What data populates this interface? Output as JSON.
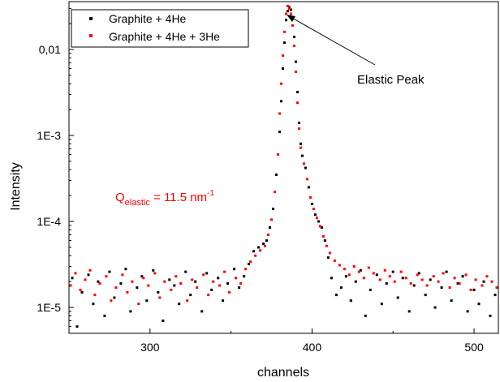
{
  "chart_data": {
    "type": "scatter",
    "title": "",
    "xlabel": "channels",
    "ylabel": "Intensity",
    "xlim": [
      250,
      515
    ],
    "ylim": [
      5e-06,
      0.036
    ],
    "y_scale": "log",
    "x_ticks": [
      {
        "value": 300,
        "label": "300"
      },
      {
        "value": 400,
        "label": "400"
      },
      {
        "value": 500,
        "label": "500"
      }
    ],
    "y_ticks": [
      {
        "value": 1e-05,
        "label": "1E-5"
      },
      {
        "value": 0.0001,
        "label": "1E-4"
      },
      {
        "value": 0.001,
        "label": "1E-3"
      },
      {
        "value": 0.01,
        "label": "0,01"
      }
    ],
    "grid": false,
    "legend_position": "top-left",
    "series": [
      {
        "name": "Graphite + 4He",
        "color": "#000000",
        "points": [
          [
            252,
            2.2e-05
          ],
          [
            255,
            6e-06
          ],
          [
            258,
            1.5e-05
          ],
          [
            262,
            2.4e-05
          ],
          [
            265,
            1.1e-05
          ],
          [
            268,
            2e-05
          ],
          [
            272,
            8e-06
          ],
          [
            275,
            2.6e-05
          ],
          [
            278,
            1.3e-05
          ],
          [
            282,
            1.9e-05
          ],
          [
            285,
            2.8e-05
          ],
          [
            288,
            9e-06
          ],
          [
            292,
            1.7e-05
          ],
          [
            295,
            2.3e-05
          ],
          [
            298,
            1.2e-05
          ],
          [
            302,
            2.7e-05
          ],
          [
            305,
            1.5e-05
          ],
          [
            308,
            7e-06
          ],
          [
            312,
            2.1e-05
          ],
          [
            315,
            1.8e-05
          ],
          [
            318,
            1.1e-05
          ],
          [
            322,
            2.6e-05
          ],
          [
            325,
            1.4e-05
          ],
          [
            328,
            2e-05
          ],
          [
            332,
            9e-06
          ],
          [
            335,
            2.5e-05
          ],
          [
            338,
            1.6e-05
          ],
          [
            342,
            2.2e-05
          ],
          [
            345,
            1.2e-05
          ],
          [
            348,
            1.9e-05
          ],
          [
            352,
            2.8e-05
          ],
          [
            355,
            1.7e-05
          ],
          [
            358,
            2.3e-05
          ],
          [
            361,
            3.2e-05
          ],
          [
            364,
            4.5e-05
          ],
          [
            367,
            5e-05
          ],
          [
            370,
            5.5e-05
          ],
          [
            372,
            6e-05
          ],
          [
            374,
            8.5e-05
          ],
          [
            376,
            0.00014
          ],
          [
            378,
            0.00035
          ],
          [
            380,
            0.0011
          ],
          [
            381,
            0.0025
          ],
          [
            382,
            0.006
          ],
          [
            383,
            0.012
          ],
          [
            384,
            0.022
          ],
          [
            385,
            0.028
          ],
          [
            386,
            0.031
          ],
          [
            387,
            0.029
          ],
          [
            388,
            0.023
          ],
          [
            389,
            0.014
          ],
          [
            390,
            0.0072
          ],
          [
            391,
            0.0032
          ],
          [
            392,
            0.0014
          ],
          [
            393,
            0.0008
          ],
          [
            394,
            0.00058
          ],
          [
            396,
            0.00042
          ],
          [
            398,
            0.00025
          ],
          [
            400,
            0.00016
          ],
          [
            402,
            0.00012
          ],
          [
            404,
            0.0001
          ],
          [
            406,
            8.5e-05
          ],
          [
            408,
            6e-05
          ],
          [
            410,
            3.8e-05
          ],
          [
            412,
            2.2e-05
          ],
          [
            415,
            1.4e-05
          ],
          [
            418,
            1.7e-05
          ],
          [
            421,
            2.3e-05
          ],
          [
            424,
            1.2e-05
          ],
          [
            427,
            2e-05
          ],
          [
            430,
            2.7e-05
          ],
          [
            433,
            8e-06
          ],
          [
            436,
            1.6e-05
          ],
          [
            440,
            2.4e-05
          ],
          [
            443,
            1.1e-05
          ],
          [
            446,
            1.9e-05
          ],
          [
            450,
            2.6e-05
          ],
          [
            453,
            1.3e-05
          ],
          [
            456,
            2.2e-05
          ],
          [
            460,
            9e-06
          ],
          [
            463,
            1.8e-05
          ],
          [
            466,
            2.5e-05
          ],
          [
            470,
            1.4e-05
          ],
          [
            473,
            2.1e-05
          ],
          [
            476,
            1e-05
          ],
          [
            480,
            1.7e-05
          ],
          [
            483,
            2.6e-05
          ],
          [
            486,
            1.2e-05
          ],
          [
            490,
            1.9e-05
          ],
          [
            493,
            2.3e-05
          ],
          [
            496,
            9e-06
          ],
          [
            500,
            1.6e-05
          ],
          [
            503,
            1.1e-05
          ],
          [
            506,
            2e-05
          ],
          [
            510,
            8e-06
          ],
          [
            513,
            1.4e-05
          ]
        ]
      },
      {
        "name": "Graphite + 4He + 3He",
        "color": "#ff0000",
        "points": [
          [
            251,
            1.8e-05
          ],
          [
            254,
            2.5e-05
          ],
          [
            257,
            1.6e-05
          ],
          [
            260,
            2.1e-05
          ],
          [
            263,
            2.7e-05
          ],
          [
            266,
            1.4e-05
          ],
          [
            269,
            1.9e-05
          ],
          [
            273,
            2.3e-05
          ],
          [
            276,
            1.2e-05
          ],
          [
            279,
            1.7e-05
          ],
          [
            283,
            2.4e-05
          ],
          [
            286,
            1.5e-05
          ],
          [
            289,
            2e-05
          ],
          [
            293,
            1.1e-05
          ],
          [
            296,
            2.2e-05
          ],
          [
            299,
            1.8e-05
          ],
          [
            303,
            2.5e-05
          ],
          [
            306,
            1.3e-05
          ],
          [
            309,
            2e-05
          ],
          [
            313,
            1.6e-05
          ],
          [
            316,
            2.3e-05
          ],
          [
            319,
            1.9e-05
          ],
          [
            323,
            1.2e-05
          ],
          [
            326,
            2.1e-05
          ],
          [
            329,
            1.7e-05
          ],
          [
            333,
            2.4e-05
          ],
          [
            336,
            1.4e-05
          ],
          [
            339,
            2e-05
          ],
          [
            343,
            1.8e-05
          ],
          [
            346,
            2.6e-05
          ],
          [
            349,
            1.5e-05
          ],
          [
            353,
            2.2e-05
          ],
          [
            356,
            1.9e-05
          ],
          [
            359,
            2.8e-05
          ],
          [
            362,
            3.4e-05
          ],
          [
            365,
            4e-05
          ],
          [
            368,
            4.6e-05
          ],
          [
            371,
            5.2e-05
          ],
          [
            373,
            7e-05
          ],
          [
            375,
            0.000105
          ],
          [
            377,
            0.00022
          ],
          [
            379,
            0.0006
          ],
          [
            380,
            0.0018
          ],
          [
            381,
            0.004
          ],
          [
            382,
            0.0085
          ],
          [
            383,
            0.016
          ],
          [
            384,
            0.026
          ],
          [
            385,
            0.032
          ],
          [
            386,
            0.03
          ],
          [
            387,
            0.026
          ],
          [
            388,
            0.019
          ],
          [
            389,
            0.011
          ],
          [
            390,
            0.0055
          ],
          [
            391,
            0.0024
          ],
          [
            392,
            0.0012
          ],
          [
            393,
            0.00072
          ],
          [
            395,
            0.00047
          ],
          [
            397,
            0.00031
          ],
          [
            399,
            0.00019
          ],
          [
            401,
            0.00014
          ],
          [
            403,
            0.00011
          ],
          [
            405,
            8.8e-05
          ],
          [
            407,
            6.7e-05
          ],
          [
            409,
            5.2e-05
          ],
          [
            411,
            4.3e-05
          ],
          [
            414,
            3.5e-05
          ],
          [
            417,
            3.1e-05
          ],
          [
            420,
            2.8e-05
          ],
          [
            423,
            2.4e-05
          ],
          [
            426,
            3e-05
          ],
          [
            429,
            2.6e-05
          ],
          [
            432,
            2.2e-05
          ],
          [
            435,
            2.9e-05
          ],
          [
            438,
            2.5e-05
          ],
          [
            442,
            2.1e-05
          ],
          [
            445,
            2.7e-05
          ],
          [
            448,
            2.3e-05
          ],
          [
            451,
            2e-05
          ],
          [
            455,
            2.6e-05
          ],
          [
            458,
            2.2e-05
          ],
          [
            461,
            1.9e-05
          ],
          [
            465,
            2.4e-05
          ],
          [
            468,
            2.1e-05
          ],
          [
            471,
            1.8e-05
          ],
          [
            475,
            2.3e-05
          ],
          [
            478,
            2e-05
          ],
          [
            481,
            2.5e-05
          ],
          [
            485,
            1.7e-05
          ],
          [
            488,
            2.2e-05
          ],
          [
            491,
            1.9e-05
          ],
          [
            495,
            2.4e-05
          ],
          [
            498,
            1.6e-05
          ],
          [
            501,
            2.1e-05
          ],
          [
            505,
            1.8e-05
          ],
          [
            508,
            2.3e-05
          ],
          [
            511,
            2e-05
          ],
          [
            514,
            1.7e-05
          ]
        ]
      }
    ],
    "annotations": {
      "elastic_peak": {
        "text": "Elastic Peak",
        "target": [
          386,
          0.031
        ]
      },
      "q_label": {
        "main": "Q",
        "sub": "elastic",
        "value": " = 11.5 nm",
        "sup": "-1",
        "color": "#ff0000"
      }
    }
  }
}
